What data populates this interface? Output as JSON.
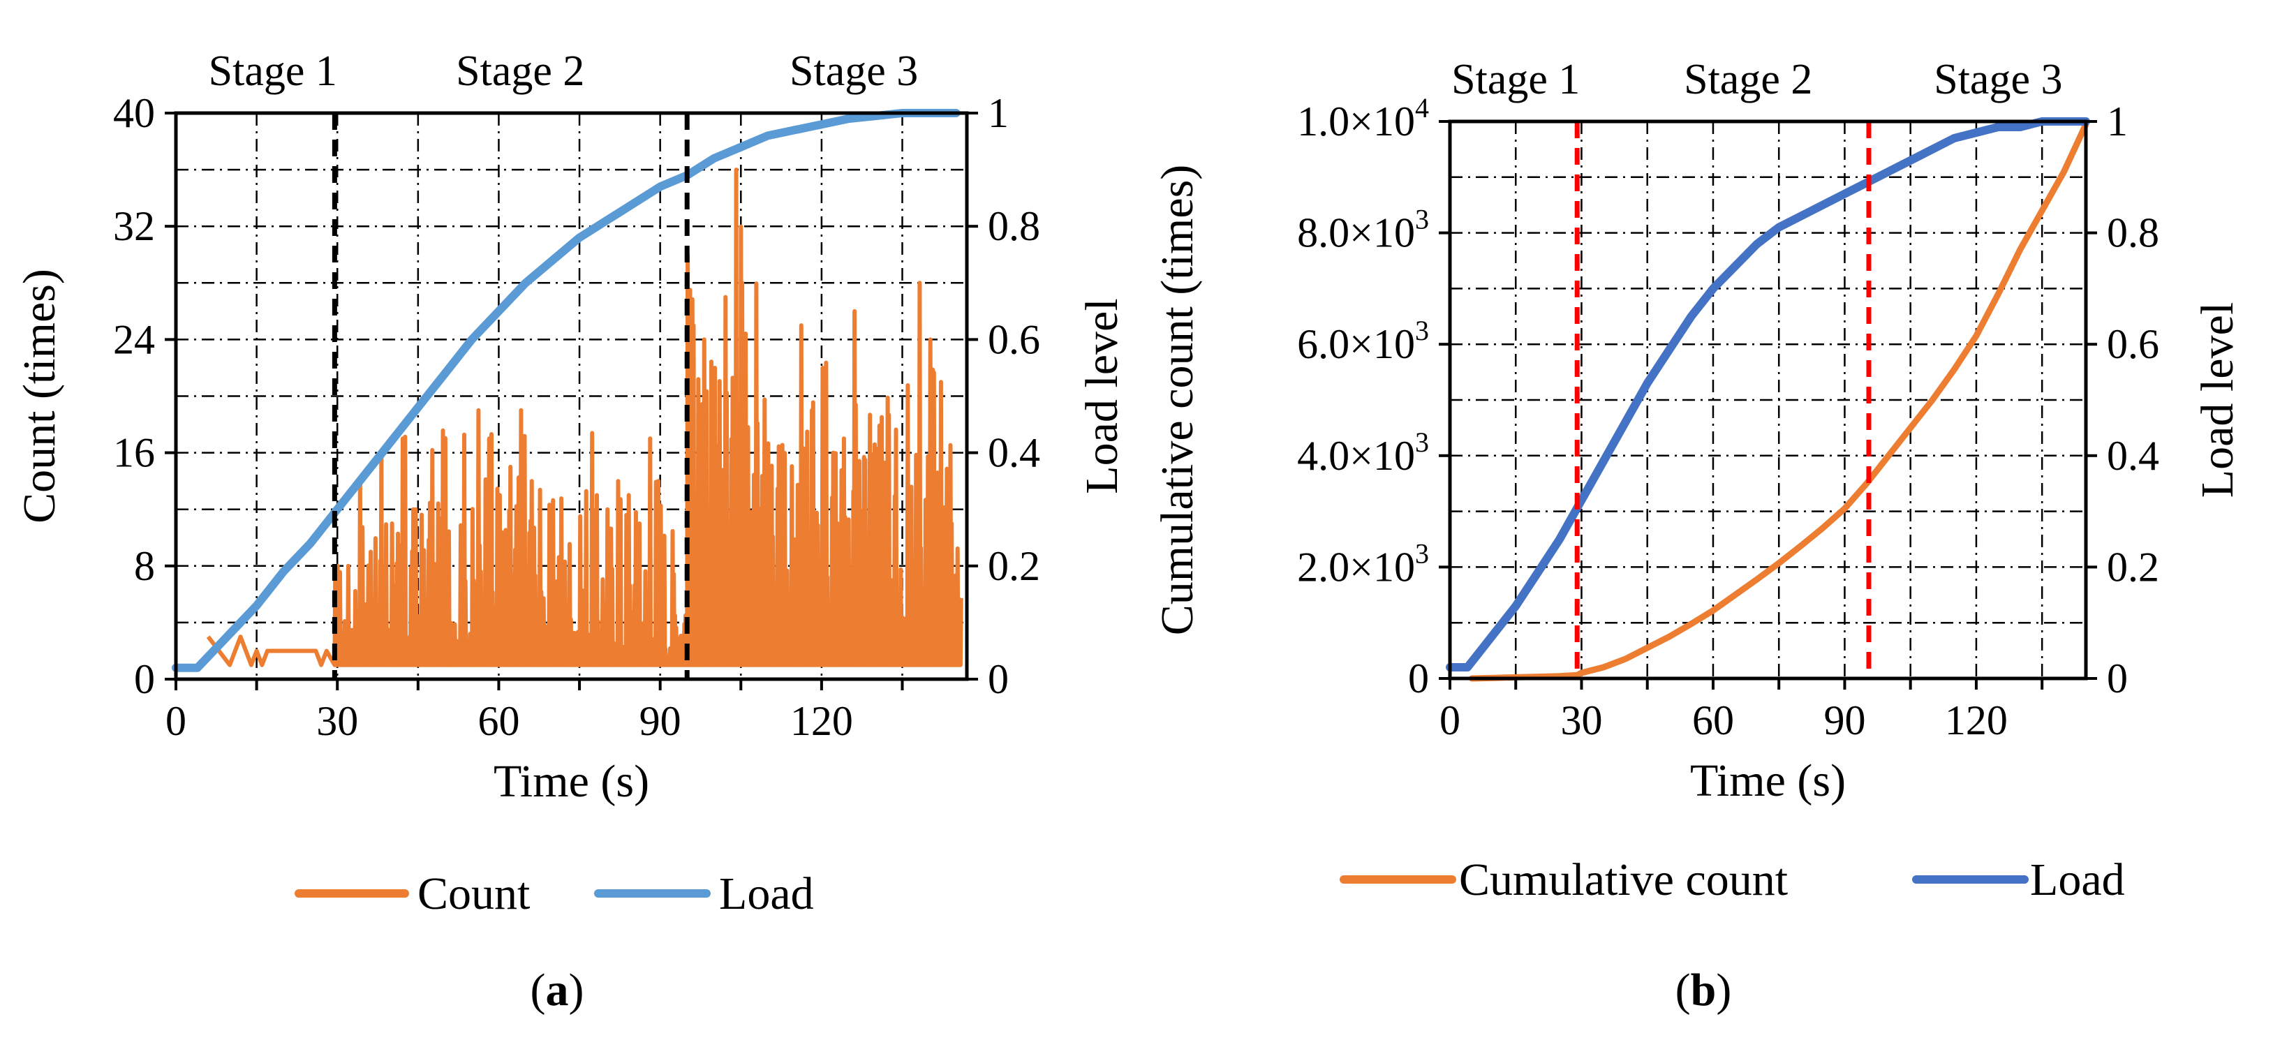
{
  "chart_data": [
    {
      "type": "line",
      "panel": "a",
      "panel_label": "a",
      "xlabel": "Time (s)",
      "ylabel": "Count (times)",
      "y2label": "Load level",
      "xlim": [
        0,
        147
      ],
      "ylim": [
        0,
        40
      ],
      "y2lim": [
        0,
        1
      ],
      "x_ticks": [
        0,
        30,
        60,
        90,
        120
      ],
      "x_tick_labels": [
        "0",
        "30",
        "60",
        "90",
        "120"
      ],
      "y_ticks": [
        0,
        8,
        16,
        24,
        32,
        40
      ],
      "y_tick_labels": [
        "0",
        "8",
        "16",
        "24",
        "32",
        "40"
      ],
      "y2_ticks": [
        0,
        0.2,
        0.4,
        0.6,
        0.8,
        1
      ],
      "y2_tick_labels": [
        "0",
        "0.2",
        "0.4",
        "0.6",
        "0.8",
        "1"
      ],
      "grid": true,
      "stage_boundaries": [
        29.5,
        95
      ],
      "stage_labels": [
        {
          "text": "Stage 1",
          "x": 18
        },
        {
          "text": "Stage 2",
          "x": 64
        },
        {
          "text": "Stage 3",
          "x": 126
        }
      ],
      "legend": [
        "Count",
        "Load"
      ],
      "legend_position": "bottom",
      "series": [
        {
          "name": "Load",
          "axis": "right",
          "color": "#5B9BD5",
          "x": [
            0,
            4,
            6,
            10,
            15,
            20,
            25,
            30,
            35,
            40,
            45,
            50,
            55,
            60,
            65,
            70,
            75,
            80,
            85,
            90,
            95,
            100,
            105,
            110,
            115,
            120,
            125,
            130,
            135,
            140,
            145
          ],
          "values": [
            0.02,
            0.02,
            0.04,
            0.08,
            0.13,
            0.19,
            0.24,
            0.3,
            0.36,
            0.42,
            0.48,
            0.54,
            0.6,
            0.65,
            0.7,
            0.74,
            0.78,
            0.81,
            0.84,
            0.87,
            0.89,
            0.92,
            0.94,
            0.96,
            0.97,
            0.98,
            0.99,
            0.995,
            1.0,
            1.0,
            1.0
          ]
        },
        {
          "name": "Count",
          "axis": "left",
          "color": "#ED7D31",
          "pre_stage2": {
            "x": [
              6,
              8,
              10,
              12,
              13,
              14,
              15,
              16,
              17,
              20,
              23,
              26,
              27,
              28
            ],
            "values": [
              3,
              2,
              1,
              3,
              2,
              1,
              2,
              1,
              2,
              2,
              2,
              2,
              1,
              2
            ]
          },
          "baseline": 1,
          "stage2_range": [
            29.5,
            95
          ],
          "stage2_bursts": {
            "x": [
              30,
              32,
              34,
              36,
              38,
              40,
              42,
              44,
              46,
              48,
              50,
              52,
              54,
              56,
              58,
              60,
              62,
              64,
              66,
              68,
              70,
              72,
              74,
              76,
              78,
              80,
              82,
              84,
              86,
              88,
              90,
              92,
              94
            ],
            "values": [
              8,
              10,
              14,
              9,
              16,
              11,
              17,
              12,
              16,
              17,
              15,
              18,
              12,
              19,
              17,
              13,
              15,
              19,
              14,
              12,
              16,
              12,
              11,
              17,
              13,
              12,
              14,
              13,
              11,
              17,
              13,
              11,
              13
            ]
          },
          "stage3_range": [
            95,
            146
          ],
          "stage3_bursts": {
            "x": [
              95,
              96,
              98,
              100,
              102,
              104,
              105,
              106,
              108,
              110,
              112,
              114,
              116,
              118,
              120,
              122,
              124,
              126,
              128,
              130,
              132,
              134,
              136,
              138,
              140,
              142,
              144
            ],
            "values": [
              30,
              25,
              24,
              22,
              27,
              36,
              28,
              27,
              20,
              17,
              24,
              16,
              25,
              19,
              22,
              16,
              17,
              26,
              20,
              18,
              24,
              21,
              25,
              28,
              24,
              21,
              11
            ]
          }
        }
      ]
    },
    {
      "type": "line",
      "panel": "b",
      "panel_label": "b",
      "xlabel": "Time (s)",
      "ylabel": "Cumulative count (times)",
      "y2label": "Load level",
      "xlim": [
        0,
        145
      ],
      "ylim": [
        0,
        10000
      ],
      "y2lim": [
        0,
        1
      ],
      "x_ticks": [
        0,
        30,
        60,
        90,
        120
      ],
      "x_tick_labels": [
        "0",
        "30",
        "60",
        "90",
        "120"
      ],
      "y_ticks": [
        0,
        2000,
        4000,
        6000,
        8000,
        10000
      ],
      "y_tick_labels": [
        {
          "base": "0",
          "exp": ""
        },
        {
          "base": "2.0×10",
          "exp": "3"
        },
        {
          "base": "4.0×10",
          "exp": "3"
        },
        {
          "base": "6.0×10",
          "exp": "3"
        },
        {
          "base": "8.0×10",
          "exp": "3"
        },
        {
          "base": "1.0×10",
          "exp": "4"
        }
      ],
      "y2_ticks": [
        0,
        0.2,
        0.4,
        0.6,
        0.8,
        1
      ],
      "y2_tick_labels": [
        "0",
        "0.2",
        "0.4",
        "0.6",
        "0.8",
        "1"
      ],
      "grid": true,
      "stage_boundaries": [
        29,
        95.5
      ],
      "stage_labels": [
        {
          "text": "Stage 1",
          "x": 15
        },
        {
          "text": "Stage 2",
          "x": 68
        },
        {
          "text": "Stage 3",
          "x": 125
        }
      ],
      "legend": [
        "Cumulative count",
        "Load"
      ],
      "legend_position": "bottom",
      "series": [
        {
          "name": "Load",
          "axis": "right",
          "color": "#4472C4",
          "x": [
            0,
            4,
            6,
            10,
            15,
            20,
            25,
            30,
            35,
            40,
            45,
            50,
            55,
            60,
            65,
            70,
            75,
            80,
            85,
            90,
            95,
            100,
            105,
            110,
            115,
            120,
            125,
            130,
            135,
            140,
            145
          ],
          "values": [
            0.02,
            0.02,
            0.04,
            0.08,
            0.13,
            0.19,
            0.25,
            0.32,
            0.39,
            0.46,
            0.53,
            0.59,
            0.65,
            0.7,
            0.74,
            0.78,
            0.81,
            0.83,
            0.85,
            0.87,
            0.89,
            0.91,
            0.93,
            0.95,
            0.97,
            0.98,
            0.99,
            0.99,
            1.0,
            1.0,
            1.0
          ]
        },
        {
          "name": "Cumulative count",
          "axis": "left",
          "color": "#ED7D31",
          "x": [
            5,
            10,
            15,
            20,
            25,
            29,
            30,
            35,
            40,
            45,
            50,
            55,
            60,
            65,
            70,
            75,
            80,
            85,
            90,
            95,
            100,
            105,
            110,
            115,
            120,
            125,
            130,
            135,
            140,
            145
          ],
          "values": [
            0,
            10,
            20,
            30,
            40,
            60,
            100,
            200,
            350,
            550,
            750,
            980,
            1220,
            1500,
            1780,
            2070,
            2380,
            2700,
            3050,
            3500,
            4000,
            4500,
            5000,
            5550,
            6150,
            6900,
            7700,
            8400,
            9100,
            9950
          ]
        }
      ]
    }
  ]
}
